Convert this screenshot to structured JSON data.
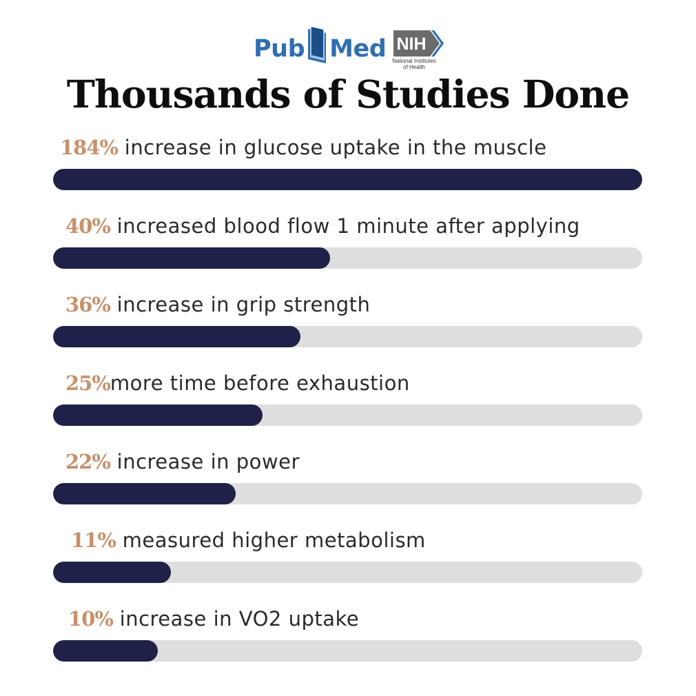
{
  "logos": {
    "pubmed_pub": "Pub",
    "pubmed_med": "Med",
    "nih_text": "NIH",
    "nih_caption_line1": "National Institutes",
    "nih_caption_line2": "of Health"
  },
  "title": "Thousands of Studies Done",
  "colors": {
    "bar_fill": "#1f2148",
    "bar_track": "#dedede",
    "value_text": "#c8906a",
    "pubmed_blue": "#2f6fb0",
    "nih_gray": "#6b6b6b"
  },
  "chart_data": {
    "type": "bar",
    "orientation": "horizontal",
    "title": "Thousands of Studies Done",
    "categories": [
      "increase in glucose uptake in the muscle",
      "increased blood flow 1 minute after applying",
      "increase in grip strength",
      "more time before exhaustion",
      "increase in power",
      "measured higher metabolism",
      "increase in VO2 uptake"
    ],
    "value_labels": [
      "184%",
      "40%",
      "36%",
      "25%",
      "22%",
      "11%",
      "10%"
    ],
    "values": [
      184,
      40,
      36,
      25,
      22,
      11,
      10
    ],
    "bar_fill_fraction": [
      1.0,
      0.47,
      0.42,
      0.355,
      0.31,
      0.2,
      0.178
    ],
    "grid": false,
    "legend": "none"
  }
}
